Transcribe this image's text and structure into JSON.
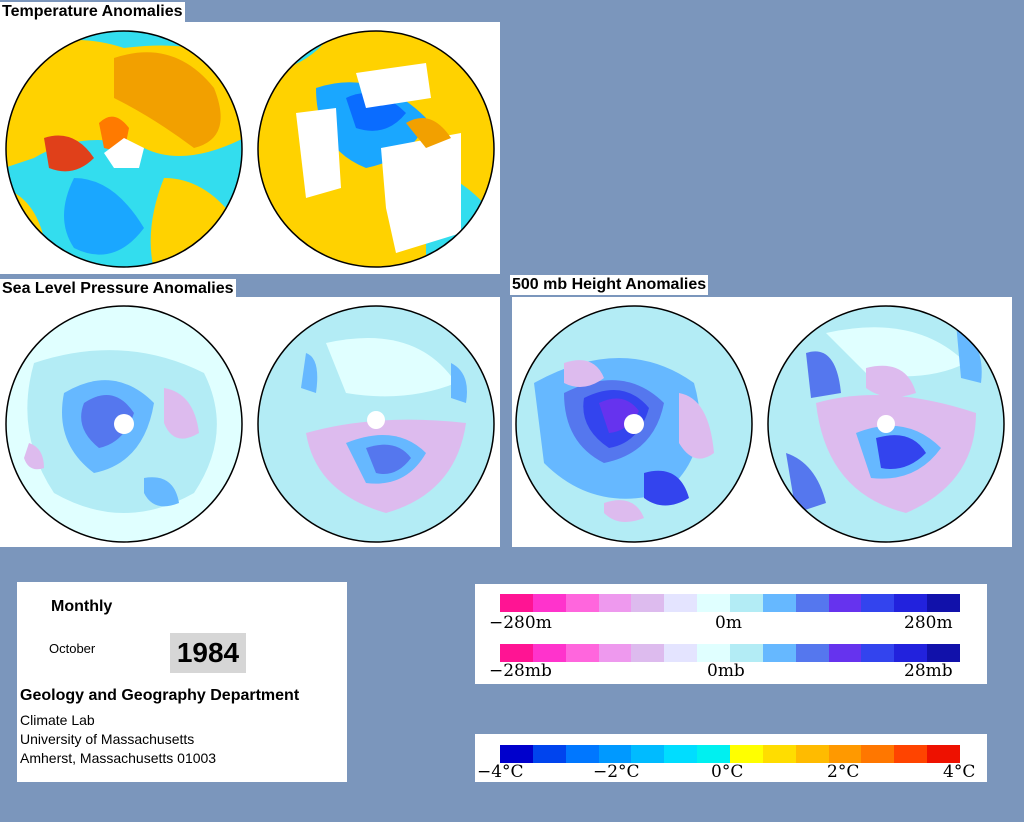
{
  "panels": {
    "temperature": {
      "title": "Temperature Anomalies"
    },
    "slp": {
      "title": "Sea Level Pressure Anomalies"
    },
    "height500": {
      "title": "500 mb Height Anomalies"
    }
  },
  "info": {
    "period": "Monthly",
    "month": "October",
    "year": "1984",
    "department": "Geology and Geography Department",
    "lab": "Climate Lab",
    "university": "University of Massachusetts",
    "address": "Amherst, Massachusetts 01003"
  },
  "legends": {
    "height": {
      "labels": [
        "−280m",
        "0m",
        "280m"
      ]
    },
    "pressure": {
      "labels": [
        "−28mb",
        "0mb",
        "28mb"
      ]
    },
    "temperature": {
      "labels": [
        "−4°C",
        "−2°C",
        "0°C",
        "2°C",
        "4°C"
      ]
    }
  },
  "colors": {
    "background": "#7b96bc",
    "anomaly_scale": [
      "#ff1493",
      "#ff33cc",
      "#ff66dd",
      "#ee99ee",
      "#ddbbee",
      "#e4e4ff",
      "#e0ffff",
      "#b3ecf5",
      "#66b8ff",
      "#5577ee",
      "#6633ee",
      "#3344ee",
      "#2222dd",
      "#1111aa"
    ],
    "temperature_scale": [
      "#0000cc",
      "#0044ee",
      "#0077ff",
      "#0099ff",
      "#00bbff",
      "#00ddff",
      "#00f0f0",
      "#ffff00",
      "#ffdd00",
      "#ffbb00",
      "#ff9900",
      "#ff7700",
      "#ff4400",
      "#ee1100"
    ]
  }
}
